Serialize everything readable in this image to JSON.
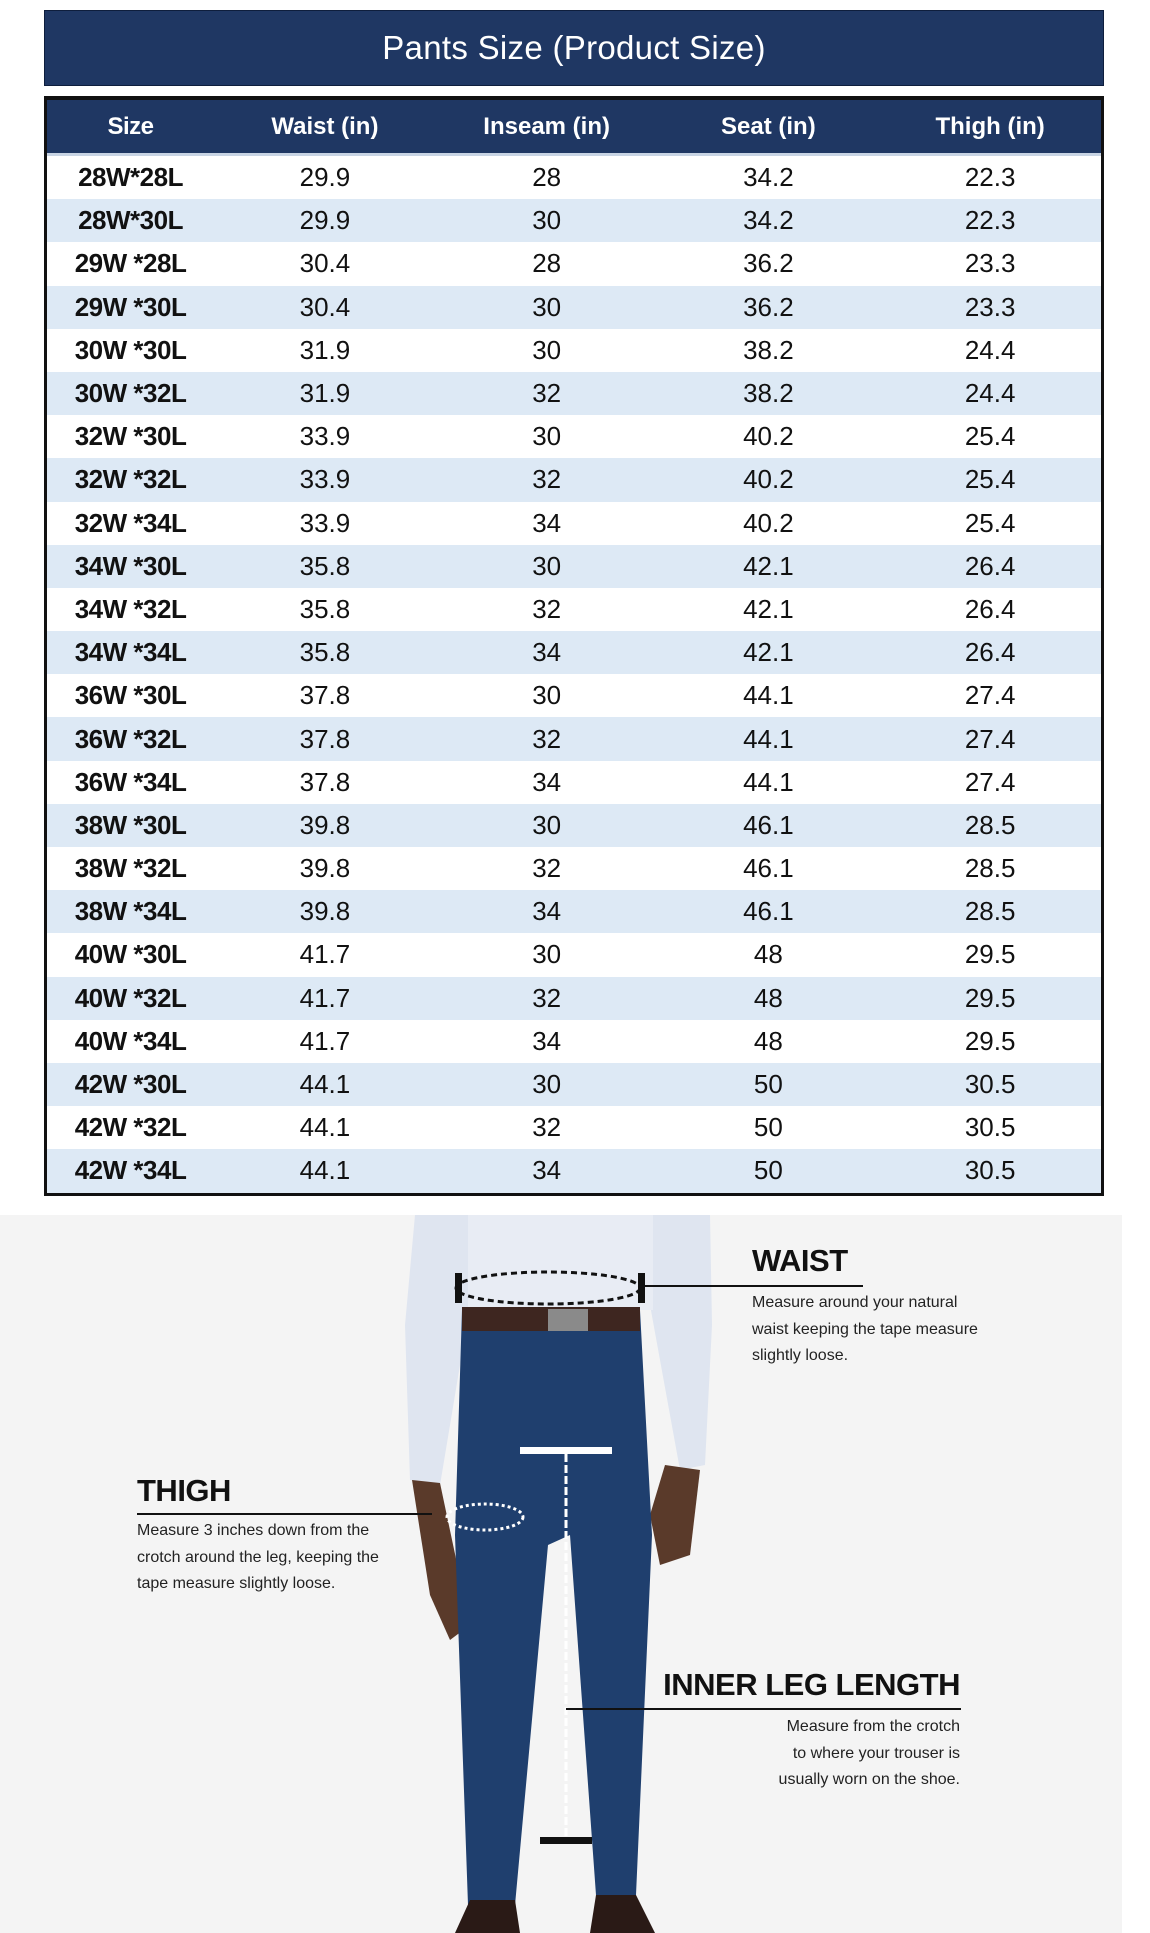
{
  "title": "Pants Size (Product Size)",
  "table": {
    "headers": [
      "Size",
      "Waist (in)",
      "Inseam (in)",
      "Seat (in)",
      "Thigh (in)"
    ],
    "rows": [
      [
        "28W*28L",
        "29.9",
        "28",
        "34.2",
        "22.3"
      ],
      [
        "28W*30L",
        "29.9",
        "30",
        "34.2",
        "22.3"
      ],
      [
        "29W *28L",
        "30.4",
        "28",
        "36.2",
        "23.3"
      ],
      [
        "29W *30L",
        "30.4",
        "30",
        "36.2",
        "23.3"
      ],
      [
        "30W *30L",
        "31.9",
        "30",
        "38.2",
        "24.4"
      ],
      [
        "30W *32L",
        "31.9",
        "32",
        "38.2",
        "24.4"
      ],
      [
        "32W *30L",
        "33.9",
        "30",
        "40.2",
        "25.4"
      ],
      [
        "32W *32L",
        "33.9",
        "32",
        "40.2",
        "25.4"
      ],
      [
        "32W *34L",
        "33.9",
        "34",
        "40.2",
        "25.4"
      ],
      [
        "34W *30L",
        "35.8",
        "30",
        "42.1",
        "26.4"
      ],
      [
        "34W *32L",
        "35.8",
        "32",
        "42.1",
        "26.4"
      ],
      [
        "34W *34L",
        "35.8",
        "34",
        "42.1",
        "26.4"
      ],
      [
        "36W *30L",
        "37.8",
        "30",
        "44.1",
        "27.4"
      ],
      [
        "36W *32L",
        "37.8",
        "32",
        "44.1",
        "27.4"
      ],
      [
        "36W *34L",
        "37.8",
        "34",
        "44.1",
        "27.4"
      ],
      [
        "38W *30L",
        "39.8",
        "30",
        "46.1",
        "28.5"
      ],
      [
        "38W *32L",
        "39.8",
        "32",
        "46.1",
        "28.5"
      ],
      [
        "38W *34L",
        "39.8",
        "34",
        "46.1",
        "28.5"
      ],
      [
        "40W *30L",
        "41.7",
        "30",
        "48",
        "29.5"
      ],
      [
        "40W *32L",
        "41.7",
        "32",
        "48",
        "29.5"
      ],
      [
        "40W *34L",
        "41.7",
        "34",
        "48",
        "29.5"
      ],
      [
        "42W *30L",
        "44.1",
        "30",
        "50",
        "30.5"
      ],
      [
        "42W *32L",
        "44.1",
        "32",
        "50",
        "30.5"
      ],
      [
        "42W *34L",
        "44.1",
        "34",
        "50",
        "30.5"
      ]
    ]
  },
  "guide": {
    "waist": {
      "label": "WAIST",
      "lines": [
        "Measure around your natural",
        "waist keeping the tape measure",
        "slightly loose."
      ]
    },
    "thigh": {
      "label": "THIGH",
      "lines": [
        "Measure 3 inches down from the",
        "crotch around the leg, keeping the",
        "tape measure slightly loose."
      ]
    },
    "inner_leg": {
      "label": "INNER LEG LENGTH",
      "lines": [
        "Measure from the crotch",
        "to where your trouser is",
        "usually worn on the shoe."
      ]
    }
  },
  "colors": {
    "header": "#1f3763",
    "alt_row": "#dde9f5",
    "pants": "#1f3f6e"
  }
}
